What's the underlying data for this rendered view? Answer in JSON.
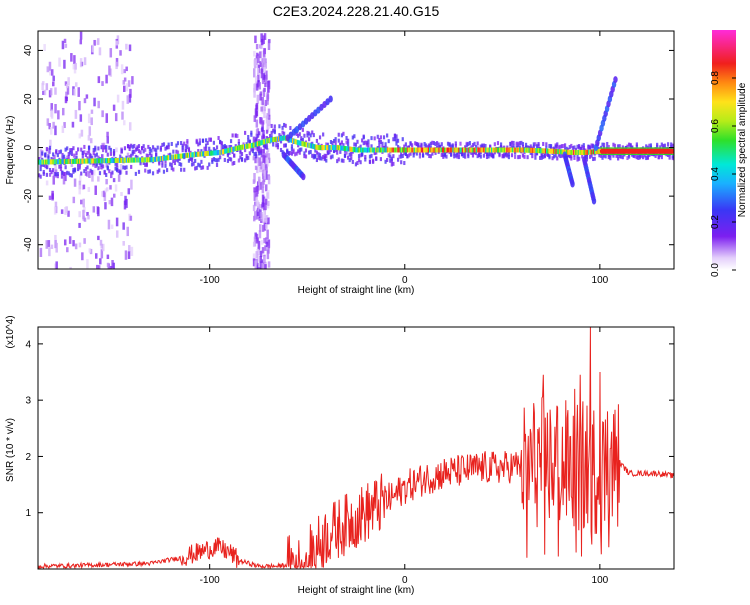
{
  "figure_title": "C2E3.2024.228.21.40.G15",
  "colorbar": {
    "label": "Normalized spectral amplitude",
    "ticks": [
      "0.0",
      "0.2",
      "0.4",
      "0.6",
      "0.8"
    ]
  },
  "chart_data": [
    {
      "type": "heatmap",
      "title": "C2E3.2024.228.21.40.G15",
      "xlabel": "Height of straight line (km)",
      "ylabel": "Frequency (Hz)",
      "xlim": [
        -188,
        138
      ],
      "ylim": [
        -50,
        48
      ],
      "xticks": [
        -100,
        0,
        100
      ],
      "yticks": [
        -40,
        -20,
        0,
        20,
        40
      ],
      "colorscale": "normalized spectral amplitude 0-1 (purple-blue-cyan-green-yellow-red-magenta)",
      "ridge": {
        "x": [
          -188,
          -160,
          -130,
          -110,
          -95,
          -85,
          -78,
          -70,
          -62,
          -55,
          -45,
          -35,
          -25,
          -15,
          0,
          30,
          60,
          75,
          85,
          92,
          100,
          138
        ],
        "freq": [
          -6,
          -5.5,
          -5,
          -3,
          -2,
          0,
          1,
          3,
          4,
          2,
          0,
          0,
          -1,
          -1,
          -1,
          -1,
          -1,
          -1.5,
          -2,
          -2,
          -1.5,
          -1.5
        ]
      },
      "features": [
        {
          "name": "rising streak",
          "x": [
            -60,
            -38
          ],
          "freq": [
            4,
            20
          ]
        },
        {
          "name": "falling streak",
          "x": [
            -62,
            -52
          ],
          "freq": [
            -3,
            -12
          ]
        },
        {
          "name": "vertical spread",
          "x": [
            -78,
            -70
          ],
          "freq": [
            -50,
            48
          ]
        },
        {
          "name": "left-edge vertical spread",
          "x": [
            -188,
            -140
          ],
          "freq": [
            -50,
            48
          ]
        },
        {
          "name": "rising line",
          "x": [
            98,
            108
          ],
          "freq": [
            0,
            28
          ]
        },
        {
          "name": "falling line",
          "x": [
            92,
            97
          ],
          "freq": [
            -5,
            -22
          ]
        },
        {
          "name": "short falling line",
          "x": [
            82,
            86
          ],
          "freq": [
            -3,
            -15
          ]
        },
        {
          "name": "steady tone",
          "x": [
            100,
            138
          ],
          "freq": [
            -1.5,
            -1.5
          ]
        }
      ]
    },
    {
      "type": "line",
      "xlabel": "Height of straight line (km)",
      "ylabel": "SNR (10 * v/v)",
      "y_multiplier": "(x10^4)",
      "xlim": [
        -188,
        138
      ],
      "ylim": [
        0,
        4.3
      ],
      "xticks": [
        -100,
        0,
        100
      ],
      "yticks": [
        1,
        2,
        3,
        4
      ],
      "color": "#e8221e",
      "series": [
        {
          "x": [
            -188,
            -170,
            -150,
            -130,
            -115,
            -105,
            -97,
            -90,
            -85,
            -75,
            -65,
            -55,
            -50,
            -45,
            -40,
            -35,
            -30,
            -25,
            -20,
            -15,
            -10,
            -5,
            0,
            10,
            20,
            30,
            40,
            50,
            60,
            70,
            75,
            80,
            85,
            90,
            95,
            100,
            105,
            110,
            115,
            120,
            130,
            138
          ],
          "y": [
            0.05,
            0.06,
            0.08,
            0.1,
            0.2,
            0.3,
            0.4,
            0.3,
            0.15,
            0.05,
            0.05,
            0.1,
            0.2,
            0.4,
            0.6,
            0.7,
            0.8,
            0.9,
            1.0,
            1.1,
            1.2,
            1.3,
            1.45,
            1.6,
            1.7,
            1.75,
            1.8,
            1.8,
            1.85,
            1.9,
            1.9,
            1.85,
            1.8,
            1.8,
            1.8,
            1.75,
            1.8,
            1.9,
            1.7,
            1.7,
            1.7,
            1.65
          ]
        }
      ],
      "annotations": [
        {
          "x": 95,
          "y": 4.3
        },
        {
          "x": 90,
          "y": 3.45
        },
        {
          "x": 71,
          "y": 3.45
        },
        {
          "x": 100,
          "y": 3.5
        },
        {
          "x": 87,
          "y": 3.2
        },
        {
          "x": 78,
          "y": 2.9
        },
        {
          "x": 104,
          "y": 2.8
        },
        {
          "x": 62,
          "y": 2.4
        }
      ]
    }
  ]
}
